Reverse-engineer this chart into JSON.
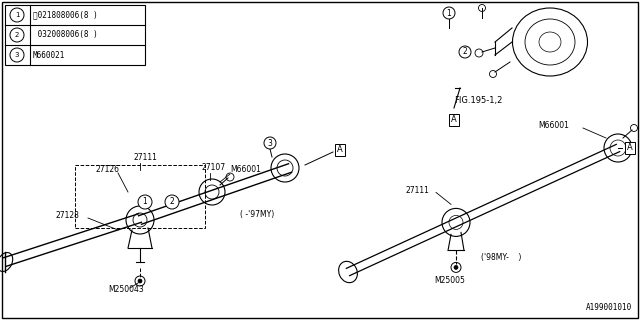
{
  "bg_color": "#ffffff",
  "part_number": "A199001010",
  "figure_ref": "FIG.195-1,2",
  "legend": [
    {
      "num": "1",
      "code": "Ⓝ021808006(8 )"
    },
    {
      "num": "2",
      "code": " 032008006(8 )"
    },
    {
      "num": "3",
      "code": "M660021"
    }
  ],
  "shaft97_label": "( -’97MY)",
  "shaft98_label": "(’98MY-    )",
  "gray": "#aaaaaa",
  "darkgray": "#666666"
}
